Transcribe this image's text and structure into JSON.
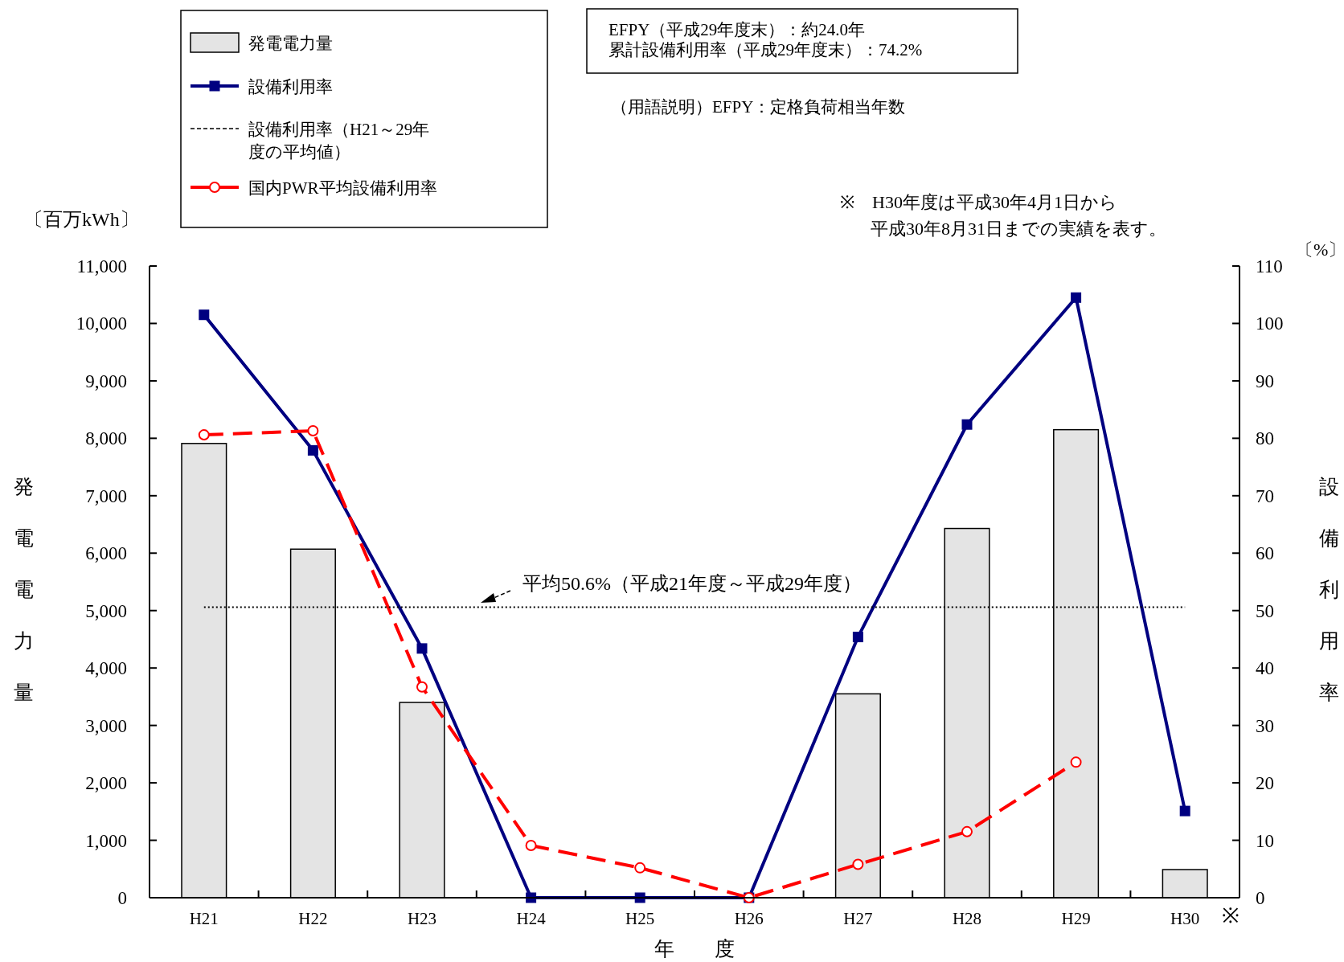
{
  "chart_data": {
    "type": "bar",
    "categories": [
      "H21",
      "H22",
      "H23",
      "H24",
      "H25",
      "H26",
      "H27",
      "H28",
      "H29",
      "H30"
    ],
    "xlabel": "年　　度",
    "ylabel": "発電電力量",
    "y2label": "設備利用率",
    "series": [
      {
        "name": "発電電力量",
        "color": "#e4e4e4",
        "values": [
          7910,
          6070,
          3400,
          0,
          0,
          0,
          3550,
          6430,
          8150,
          490
        ]
      },
      {
        "name": "設備利用率",
        "type": "line",
        "axis": "y2",
        "color": "#000080",
        "marker": "square",
        "line_style": "solid",
        "values": [
          101.5,
          77.9,
          43.4,
          0,
          0,
          0,
          45.4,
          82.4,
          104.5,
          15.1
        ]
      },
      {
        "name": "国内PWR平均設備利用率",
        "type": "line",
        "axis": "y2",
        "color": "#ff0000",
        "marker": "circle",
        "line_style": "dashed",
        "values": [
          80.6,
          81.3,
          36.7,
          9.1,
          5.2,
          0,
          5.8,
          11.5,
          23.6,
          null
        ]
      }
    ],
    "ref_lines": [
      {
        "axis": "y2",
        "value": 50.6,
        "label": "設備利用率（H21～29年度の平均値）",
        "color": "#000000",
        "line_style": "dotted"
      }
    ],
    "ylim": [
      0,
      11000
    ],
    "yticks": [
      0,
      {
        "value": 1000,
        "label": "1,000"
      },
      {
        "value": 2000,
        "label": "2,000"
      },
      {
        "value": 3000,
        "label": "3,000"
      },
      {
        "value": 4000,
        "label": "4,000"
      },
      {
        "value": 5000,
        "label": "5,000"
      },
      {
        "value": 6000,
        "label": "6,000"
      },
      {
        "value": 7000,
        "label": "7,000"
      },
      {
        "value": 8000,
        "label": "8,000"
      },
      {
        "value": 9000,
        "label": "9,000"
      },
      {
        "value": 10000,
        "label": "10,000"
      },
      {
        "value": 11000,
        "label": "11,000"
      }
    ],
    "y2lim": [
      0,
      110
    ],
    "y2ticks": [
      0,
      10,
      20,
      30,
      40,
      50,
      60,
      70,
      80,
      90,
      100,
      110
    ],
    "legend": "top left",
    "grid": false,
    "annotations": [
      "EFPY（平成29年度末）：約24.0年",
      "累計設備利用率（平成29年度末）：74.2%",
      "（用語説明）EFPY：定格負荷相当年数",
      "※　H30年度は平成30年4月1日から",
      "平成30年8月31日までの実績を表す。",
      "平均50.6%（平成21年度～平成29年度）",
      "〔百万kWh〕",
      "〔%〕",
      "※"
    ]
  }
}
